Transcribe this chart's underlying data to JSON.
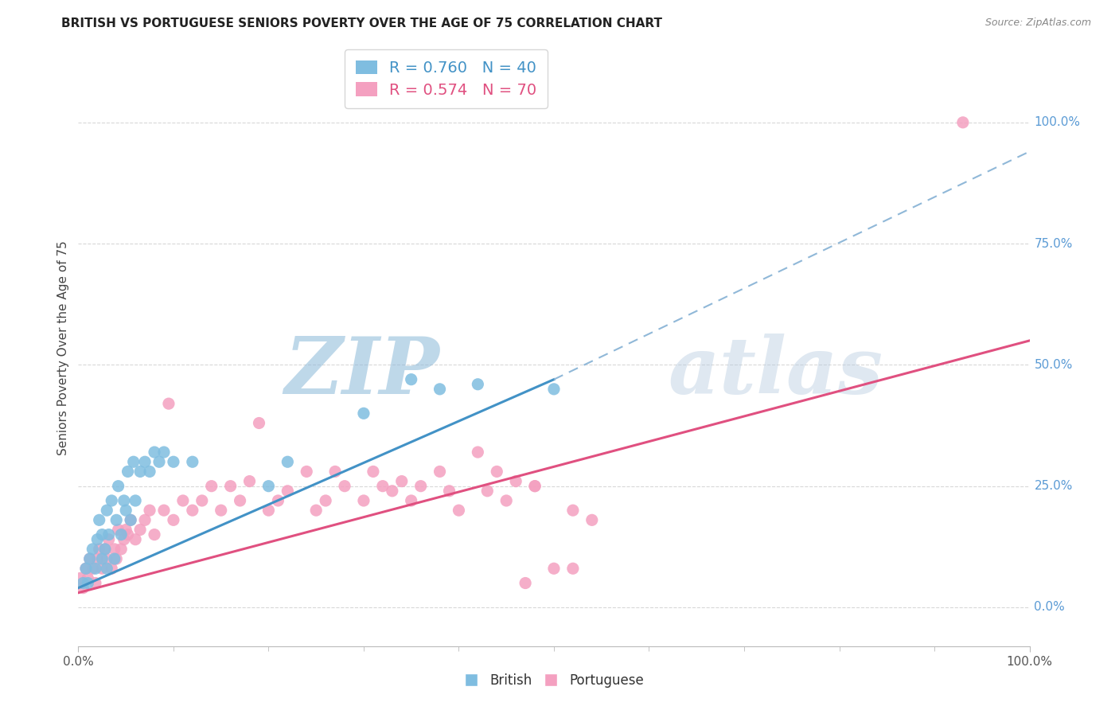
{
  "title": "BRITISH VS PORTUGUESE SENIORS POVERTY OVER THE AGE OF 75 CORRELATION CHART",
  "source": "Source: ZipAtlas.com",
  "ylabel": "Seniors Poverty Over the Age of 75",
  "british_R": 0.76,
  "british_N": 40,
  "portuguese_R": 0.574,
  "portuguese_N": 70,
  "british_color": "#7fbde0",
  "portuguese_color": "#f4a0c0",
  "british_line_color": "#4292c6",
  "portuguese_line_color": "#e05080",
  "dashed_line_color": "#90b8d8",
  "watermark_color": "#ccd8e8",
  "background_color": "#ffffff",
  "grid_color": "#d8d8d8",
  "title_color": "#222222",
  "right_label_color": "#5b9bd5",
  "source_color": "#888888",
  "xlim": [
    0.0,
    1.0
  ],
  "ylim": [
    -0.08,
    1.15
  ],
  "british_scatter_x": [
    0.005,
    0.008,
    0.01,
    0.012,
    0.015,
    0.018,
    0.02,
    0.022,
    0.025,
    0.025,
    0.028,
    0.03,
    0.03,
    0.032,
    0.035,
    0.038,
    0.04,
    0.042,
    0.045,
    0.048,
    0.05,
    0.052,
    0.055,
    0.058,
    0.06,
    0.065,
    0.07,
    0.075,
    0.08,
    0.085,
    0.09,
    0.1,
    0.12,
    0.2,
    0.22,
    0.3,
    0.35,
    0.38,
    0.42,
    0.5
  ],
  "british_scatter_y": [
    0.05,
    0.08,
    0.05,
    0.1,
    0.12,
    0.08,
    0.14,
    0.18,
    0.1,
    0.15,
    0.12,
    0.08,
    0.2,
    0.15,
    0.22,
    0.1,
    0.18,
    0.25,
    0.15,
    0.22,
    0.2,
    0.28,
    0.18,
    0.3,
    0.22,
    0.28,
    0.3,
    0.28,
    0.32,
    0.3,
    0.32,
    0.3,
    0.3,
    0.25,
    0.3,
    0.4,
    0.47,
    0.45,
    0.46,
    0.45
  ],
  "portuguese_scatter_x": [
    0.002,
    0.005,
    0.008,
    0.01,
    0.012,
    0.015,
    0.018,
    0.02,
    0.022,
    0.025,
    0.028,
    0.03,
    0.032,
    0.035,
    0.038,
    0.04,
    0.042,
    0.045,
    0.048,
    0.05,
    0.052,
    0.055,
    0.06,
    0.065,
    0.07,
    0.075,
    0.08,
    0.09,
    0.095,
    0.1,
    0.11,
    0.12,
    0.13,
    0.14,
    0.15,
    0.16,
    0.17,
    0.18,
    0.19,
    0.2,
    0.21,
    0.22,
    0.24,
    0.25,
    0.26,
    0.27,
    0.28,
    0.3,
    0.31,
    0.32,
    0.33,
    0.34,
    0.35,
    0.36,
    0.38,
    0.39,
    0.4,
    0.42,
    0.43,
    0.44,
    0.45,
    0.46,
    0.47,
    0.48,
    0.5,
    0.52,
    0.54,
    0.48,
    0.52,
    0.93
  ],
  "portuguese_scatter_y": [
    0.06,
    0.04,
    0.08,
    0.06,
    0.1,
    0.08,
    0.05,
    0.1,
    0.12,
    0.08,
    0.12,
    0.1,
    0.14,
    0.08,
    0.12,
    0.1,
    0.16,
    0.12,
    0.14,
    0.16,
    0.15,
    0.18,
    0.14,
    0.16,
    0.18,
    0.2,
    0.15,
    0.2,
    0.42,
    0.18,
    0.22,
    0.2,
    0.22,
    0.25,
    0.2,
    0.25,
    0.22,
    0.26,
    0.38,
    0.2,
    0.22,
    0.24,
    0.28,
    0.2,
    0.22,
    0.28,
    0.25,
    0.22,
    0.28,
    0.25,
    0.24,
    0.26,
    0.22,
    0.25,
    0.28,
    0.24,
    0.2,
    0.32,
    0.24,
    0.28,
    0.22,
    0.26,
    0.05,
    0.25,
    0.08,
    0.2,
    0.18,
    0.25,
    0.08,
    1.0
  ],
  "british_trend_x": [
    0.0,
    0.5
  ],
  "british_trend_y": [
    0.04,
    0.47
  ],
  "portuguese_trend_x": [
    0.0,
    1.0
  ],
  "portuguese_trend_y": [
    0.03,
    0.55
  ],
  "dashed_trend_x": [
    0.5,
    1.0
  ],
  "dashed_trend_y": [
    0.47,
    0.94
  ],
  "ytick_positions": [
    0.0,
    0.25,
    0.5,
    0.75,
    1.0
  ],
  "ytick_labels": [
    "0.0%",
    "25.0%",
    "50.0%",
    "75.0%",
    "100.0%"
  ]
}
